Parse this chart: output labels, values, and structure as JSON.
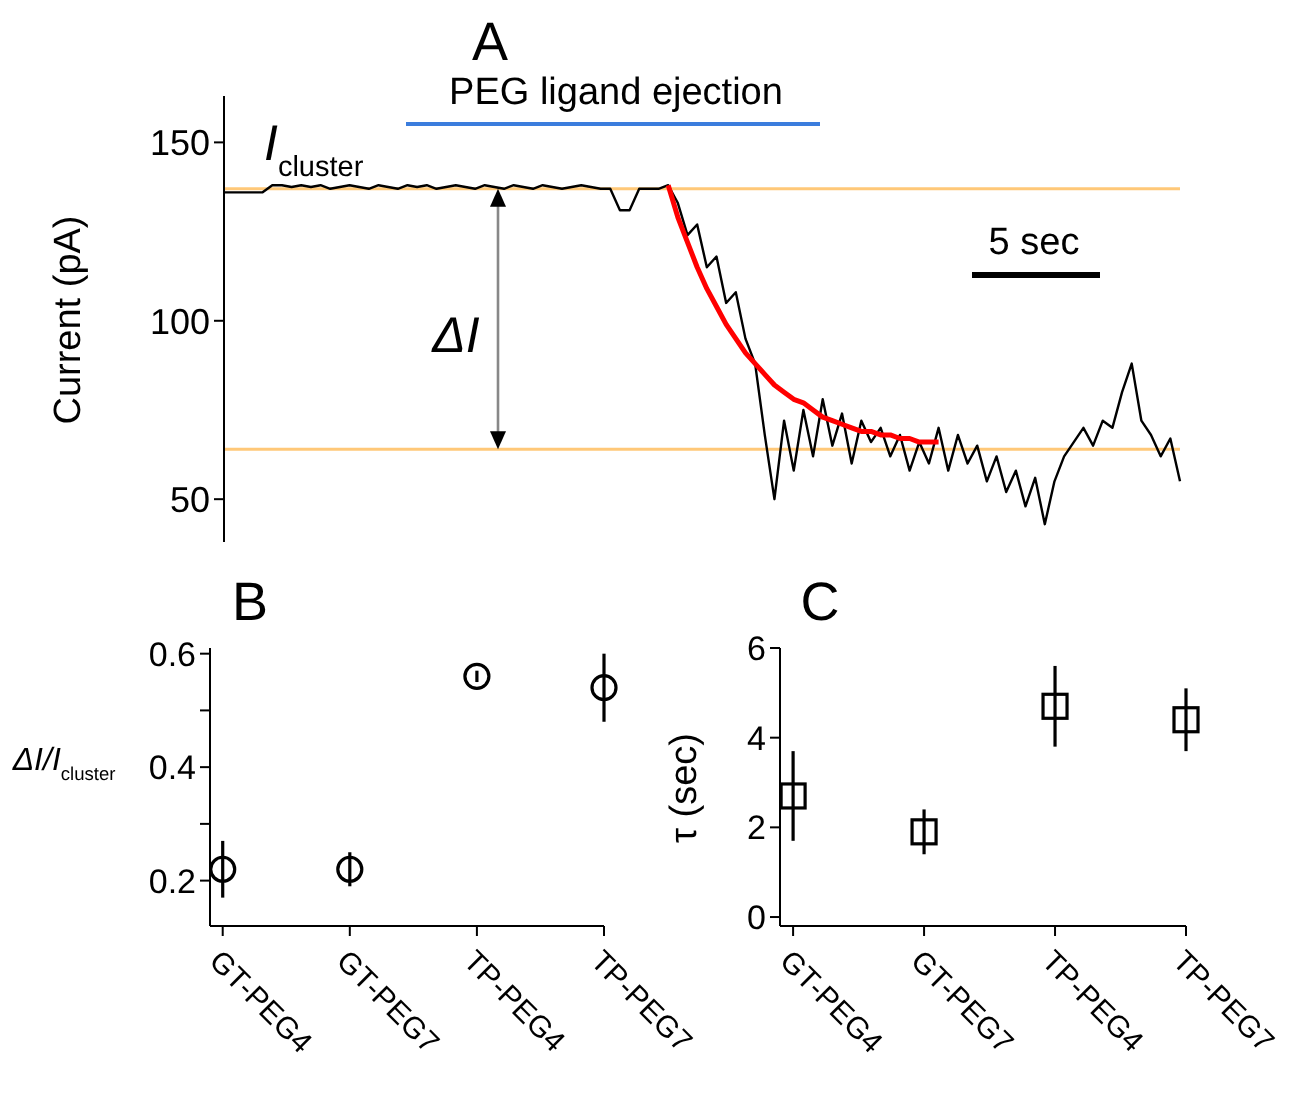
{
  "chart_data": [
    {
      "type": "line",
      "title": "A",
      "ylabel": "Current (pA)",
      "categories": [
        null,
        null,
        null,
        null,
        null,
        null,
        null,
        null,
        null,
        null,
        null,
        null,
        null,
        null,
        null,
        null,
        null,
        null,
        null,
        null,
        null,
        null,
        null,
        null,
        null,
        null,
        null,
        null,
        null,
        null,
        null,
        null,
        null,
        null,
        null,
        null,
        null,
        null,
        null,
        null,
        null,
        null,
        null,
        null,
        null,
        null,
        null,
        null,
        null,
        null,
        null,
        null,
        null,
        null,
        null,
        null,
        null,
        null,
        null,
        null,
        null,
        null,
        null,
        null,
        null,
        null,
        null,
        null,
        null,
        null,
        null,
        null,
        null,
        null,
        null,
        null,
        null,
        null,
        null,
        null,
        null,
        null,
        null,
        null,
        null,
        null,
        null,
        null,
        null,
        null,
        null,
        null,
        null,
        null,
        null,
        null,
        null,
        null,
        null,
        null
      ],
      "series": [
        {
          "color": "#000000",
          "values": [
            136,
            136,
            136,
            136,
            136,
            138,
            138,
            137.5,
            138,
            137.5,
            138,
            137,
            137.5,
            138,
            137.5,
            137,
            138,
            137.5,
            137,
            138,
            137.5,
            138,
            137,
            137.5,
            138,
            137.5,
            137,
            138,
            137.5,
            137,
            138,
            137.5,
            137,
            138,
            137.5,
            137,
            137.5,
            138,
            137.5,
            137,
            137,
            131,
            131,
            137,
            137,
            137,
            138,
            133,
            124,
            127,
            115,
            118,
            105,
            108,
            95,
            88,
            68,
            50,
            72,
            58,
            75,
            62,
            78,
            65,
            74,
            60,
            72,
            66,
            70,
            62,
            68,
            58,
            66,
            60,
            70,
            58,
            68,
            60,
            65,
            55,
            62,
            52,
            58,
            48,
            56,
            43,
            55,
            62,
            66,
            70,
            65,
            72,
            70,
            80,
            88,
            72,
            68,
            62,
            67,
            55
          ]
        },
        {
          "color": "#ff0000",
          "values": [
            null,
            null,
            null,
            null,
            null,
            null,
            null,
            null,
            null,
            null,
            null,
            null,
            null,
            null,
            null,
            null,
            null,
            null,
            null,
            null,
            null,
            null,
            null,
            null,
            null,
            null,
            null,
            null,
            null,
            null,
            null,
            null,
            null,
            null,
            null,
            null,
            null,
            null,
            null,
            null,
            null,
            null,
            null,
            null,
            null,
            null,
            138,
            129,
            122,
            115,
            109,
            104,
            99,
            95,
            91,
            88,
            85,
            82,
            80,
            78,
            77,
            75,
            73,
            72,
            71,
            70,
            69,
            69,
            68,
            68,
            67,
            67,
            66,
            66,
            66,
            null,
            null,
            null,
            null,
            null,
            null,
            null,
            null,
            null,
            null,
            null,
            null,
            null,
            null,
            null,
            null,
            null,
            null,
            null,
            null,
            null,
            null,
            null,
            null,
            null
          ]
        }
      ],
      "ylim": [
        38,
        163
      ],
      "yticks": [
        50,
        100,
        150
      ],
      "tick_labels": "y",
      "marker": "none",
      "ref_lines": [
        {
          "axis": "y",
          "value": 137,
          "color": "#ffc878"
        },
        {
          "axis": "y",
          "value": 64,
          "color": "#ffc878"
        }
      ],
      "annotations": [
        "PEG ligand ejection",
        "5 sec",
        "I$_{cluster}$",
        "ΔI"
      ]
    },
    {
      "type": "scatter",
      "title": "B",
      "ylabel": "ΔI/I$_{cluster}$",
      "categories": [
        "GT-PEG4",
        "GT-PEG7",
        "TP-PEG4",
        "TP-PEG7"
      ],
      "values": [
        0.22,
        0.22,
        0.56,
        0.54
      ],
      "errors": [
        0.05,
        0.03,
        0.01,
        0.06
      ],
      "color": "#000000",
      "marker": "circle",
      "ylim": [
        0.12,
        0.61
      ],
      "yticks": [
        0.2,
        {
          "value": 0.3,
          "label": null
        },
        0.4,
        {
          "value": 0.5,
          "label": null
        },
        0.6
      ]
    },
    {
      "type": "scatter",
      "title": "C",
      "ylabel": "τ (sec)",
      "categories": [
        "GT-PEG4",
        "GT-PEG7",
        "TP-PEG4",
        "TP-PEG7"
      ],
      "values": [
        2.7,
        1.9,
        4.7,
        4.4
      ],
      "errors": [
        1,
        0.5,
        0.9,
        0.7
      ],
      "color": "#000000",
      "marker": "square",
      "ylim": [
        -0.2,
        6
      ],
      "yticks": [
        0,
        2,
        4,
        6
      ]
    }
  ]
}
